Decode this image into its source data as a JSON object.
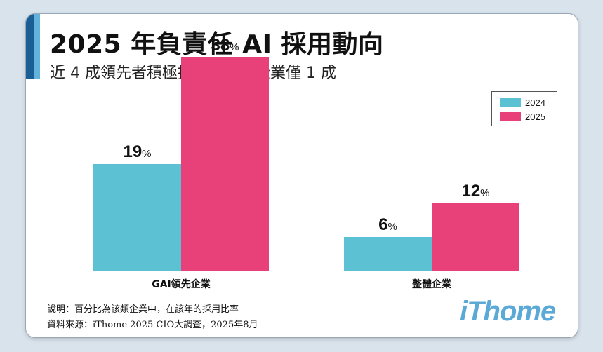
{
  "header": {
    "title": "2025 年負責任 AI 採用動向",
    "subtitle": "近 4 成領先者積極採用，整體企業僅 1 成"
  },
  "chart_data": {
    "type": "bar",
    "categories": [
      "GAI領先企業",
      "整體企業"
    ],
    "series": [
      {
        "name": "2024",
        "values": [
          19,
          6
        ],
        "color": "#5bc1d3"
      },
      {
        "name": "2025",
        "values": [
          38,
          12
        ],
        "color": "#e8417a"
      }
    ],
    "unit": "%",
    "ylim": [
      0,
      40
    ],
    "legend_position": "top-right",
    "grid": false
  },
  "notes": {
    "line1": "說明：百分比為該類企業中，在該年的採用比率",
    "line2": "資料來源：iThome 2025 CIO大調查，2025年8月"
  },
  "logo_text": "iThome"
}
